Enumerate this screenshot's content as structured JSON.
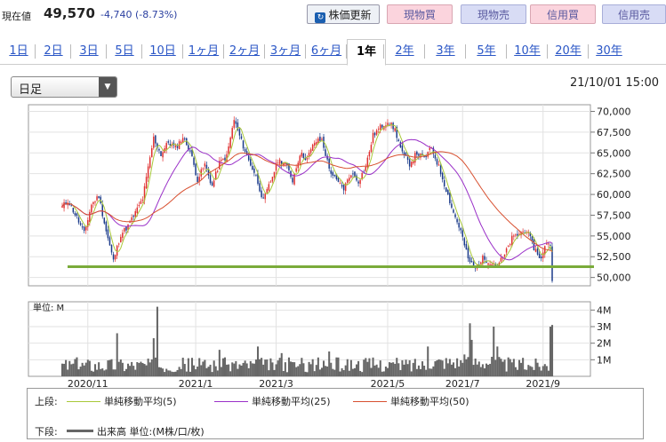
{
  "header": {
    "price_label": "現在値",
    "price": "49,570",
    "change": "-4,740 (-8.73%)",
    "update_button": "株価更新",
    "update_icon": "refresh-icon",
    "buttons": [
      "現物買",
      "現物売",
      "信用買",
      "信用売"
    ]
  },
  "tabs": [
    "1日",
    "2日",
    "3日",
    "5日",
    "10日",
    "1ヶ月",
    "2ヶ月",
    "3ヶ月",
    "6ヶ月",
    "1年",
    "2年",
    "3年",
    "5年",
    "10年",
    "20年",
    "30年"
  ],
  "active_tab": "1年",
  "selector": {
    "value": "日足"
  },
  "datetime": "21/10/01 15:00",
  "legend": {
    "upper_label": "上段:",
    "ma5": "単純移動平均(5)",
    "ma25": "単純移動平均(25)",
    "ma50": "単純移動平均(50)",
    "lower_label": "下段:",
    "volume": "出来高 単位:(M株/口/枚)"
  },
  "colors": {
    "up": "#e03030",
    "down": "#1a3a8a",
    "ma5": "#a8c838",
    "ma25": "#9a30c8",
    "ma50": "#d85030",
    "support": "#7aab3a",
    "volume": "#666666"
  },
  "chart_data": {
    "type": "candlestick",
    "price_axis": {
      "ticks": [
        "70,000",
        "67,500",
        "65,000",
        "62,500",
        "60,000",
        "57,500",
        "55,000",
        "52,500",
        "50,000"
      ],
      "ylim": [
        49000,
        70800
      ]
    },
    "volume_axis": {
      "unit_label": "単位: M",
      "ticks": [
        "4M",
        "3M",
        "2M",
        "1M"
      ],
      "ylim": [
        0,
        4.5
      ]
    },
    "x_ticks": [
      "2020/11",
      "2021/1",
      "2021/3",
      "2021/5",
      "2021/7",
      "2021/9"
    ],
    "support_line": 51300,
    "anchors": [
      [
        0,
        58500
      ],
      [
        3,
        59300
      ],
      [
        8,
        57200
      ],
      [
        12,
        55300
      ],
      [
        16,
        58800
      ],
      [
        20,
        59800
      ],
      [
        24,
        55600
      ],
      [
        28,
        52000
      ],
      [
        32,
        55200
      ],
      [
        36,
        56200
      ],
      [
        40,
        57800
      ],
      [
        44,
        59500
      ],
      [
        50,
        66800
      ],
      [
        54,
        64800
      ],
      [
        58,
        66300
      ],
      [
        62,
        65600
      ],
      [
        66,
        66900
      ],
      [
        70,
        65200
      ],
      [
        74,
        61800
      ],
      [
        78,
        63600
      ],
      [
        82,
        61000
      ],
      [
        86,
        63800
      ],
      [
        90,
        64600
      ],
      [
        94,
        69000
      ],
      [
        98,
        66400
      ],
      [
        102,
        64100
      ],
      [
        106,
        62200
      ],
      [
        110,
        59200
      ],
      [
        114,
        61600
      ],
      [
        118,
        64100
      ],
      [
        122,
        63800
      ],
      [
        126,
        61700
      ],
      [
        130,
        64900
      ],
      [
        134,
        64300
      ],
      [
        138,
        66300
      ],
      [
        142,
        66600
      ],
      [
        146,
        63100
      ],
      [
        150,
        61600
      ],
      [
        154,
        60700
      ],
      [
        158,
        62600
      ],
      [
        162,
        61600
      ],
      [
        166,
        63300
      ],
      [
        170,
        67100
      ],
      [
        174,
        68100
      ],
      [
        178,
        68800
      ],
      [
        182,
        67800
      ],
      [
        186,
        64900
      ],
      [
        190,
        63700
      ],
      [
        194,
        65000
      ],
      [
        198,
        64300
      ],
      [
        202,
        65600
      ],
      [
        206,
        63300
      ],
      [
        210,
        60600
      ],
      [
        214,
        57800
      ],
      [
        218,
        55600
      ],
      [
        222,
        52200
      ],
      [
        226,
        51100
      ],
      [
        230,
        52300
      ],
      [
        234,
        51900
      ],
      [
        238,
        51500
      ],
      [
        242,
        52700
      ],
      [
        246,
        54700
      ],
      [
        250,
        55300
      ],
      [
        254,
        55700
      ],
      [
        258,
        53600
      ],
      [
        262,
        52200
      ],
      [
        265,
        54300
      ],
      [
        267,
        54000
      ],
      [
        268,
        49570
      ]
    ],
    "volume_spikes": [
      [
        30,
        2.6
      ],
      [
        50,
        2.3
      ],
      [
        52,
        4.2
      ],
      [
        86,
        1.6
      ],
      [
        107,
        1.8
      ],
      [
        120,
        1.4
      ],
      [
        146,
        1.5
      ],
      [
        200,
        1.8
      ],
      [
        223,
        3.2
      ],
      [
        224,
        2.2
      ],
      [
        236,
        3.0
      ],
      [
        238,
        1.8
      ],
      [
        267,
        3.0
      ],
      [
        268,
        3.1
      ]
    ]
  }
}
